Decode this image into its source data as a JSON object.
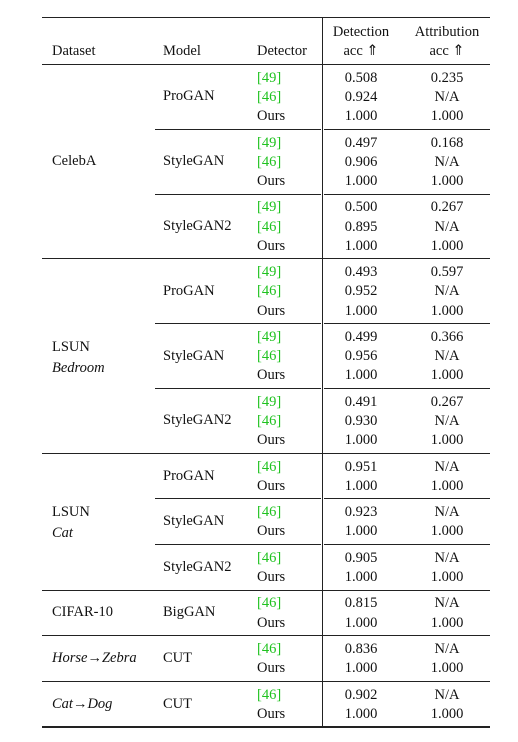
{
  "header": [
    "Dataset",
    "Model",
    "Detector",
    [
      "Detection",
      "acc ⇑"
    ],
    [
      "Attribution",
      "acc ⇑"
    ]
  ],
  "groups": [
    {
      "dataset": [
        "CelebA"
      ],
      "models": [
        {
          "model": "ProGAN",
          "rows": [
            [
              "[49]",
              "0.508",
              "0.235"
            ],
            [
              "[46]",
              "0.924",
              "N/A"
            ],
            [
              "Ours",
              "1.000",
              "1.000"
            ]
          ]
        },
        {
          "model": "StyleGAN",
          "rows": [
            [
              "[49]",
              "0.497",
              "0.168"
            ],
            [
              "[46]",
              "0.906",
              "N/A"
            ],
            [
              "Ours",
              "1.000",
              "1.000"
            ]
          ]
        },
        {
          "model": "StyleGAN2",
          "rows": [
            [
              "[49]",
              "0.500",
              "0.267"
            ],
            [
              "[46]",
              "0.895",
              "N/A"
            ],
            [
              "Ours",
              "1.000",
              "1.000"
            ]
          ]
        }
      ]
    },
    {
      "dataset": [
        "LSUN",
        "Bedroom"
      ],
      "models": [
        {
          "model": "ProGAN",
          "rows": [
            [
              "[49]",
              "0.493",
              "0.597"
            ],
            [
              "[46]",
              "0.952",
              "N/A"
            ],
            [
              "Ours",
              "1.000",
              "1.000"
            ]
          ]
        },
        {
          "model": "StyleGAN",
          "rows": [
            [
              "[49]",
              "0.499",
              "0.366"
            ],
            [
              "[46]",
              "0.956",
              "N/A"
            ],
            [
              "Ours",
              "1.000",
              "1.000"
            ]
          ]
        },
        {
          "model": "StyleGAN2",
          "rows": [
            [
              "[49]",
              "0.491",
              "0.267"
            ],
            [
              "[46]",
              "0.930",
              "N/A"
            ],
            [
              "Ours",
              "1.000",
              "1.000"
            ]
          ]
        }
      ]
    },
    {
      "dataset": [
        "LSUN",
        "Cat"
      ],
      "models": [
        {
          "model": "ProGAN",
          "rows": [
            [
              "[46]",
              "0.951",
              "N/A"
            ],
            [
              "Ours",
              "1.000",
              "1.000"
            ]
          ]
        },
        {
          "model": "StyleGAN",
          "rows": [
            [
              "[46]",
              "0.923",
              "N/A"
            ],
            [
              "Ours",
              "1.000",
              "1.000"
            ]
          ]
        },
        {
          "model": "StyleGAN2",
          "rows": [
            [
              "[46]",
              "0.905",
              "N/A"
            ],
            [
              "Ours",
              "1.000",
              "1.000"
            ]
          ]
        }
      ]
    },
    {
      "dataset": [
        "CIFAR-10"
      ],
      "models": [
        {
          "model": "BigGAN",
          "rows": [
            [
              "[46]",
              "0.815",
              "N/A"
            ],
            [
              "Ours",
              "1.000",
              "1.000"
            ]
          ]
        }
      ]
    },
    {
      "dataset": [
        "Horse→Zebra"
      ],
      "models": [
        {
          "model": "CUT",
          "rows": [
            [
              "[46]",
              "0.836",
              "N/A"
            ],
            [
              "Ours",
              "1.000",
              "1.000"
            ]
          ]
        }
      ]
    },
    {
      "dataset": [
        "Cat→Dog"
      ],
      "models": [
        {
          "model": "CUT",
          "rows": [
            [
              "[46]",
              "0.902",
              "N/A"
            ],
            [
              "Ours",
              "1.000",
              "1.000"
            ]
          ]
        }
      ]
    }
  ]
}
